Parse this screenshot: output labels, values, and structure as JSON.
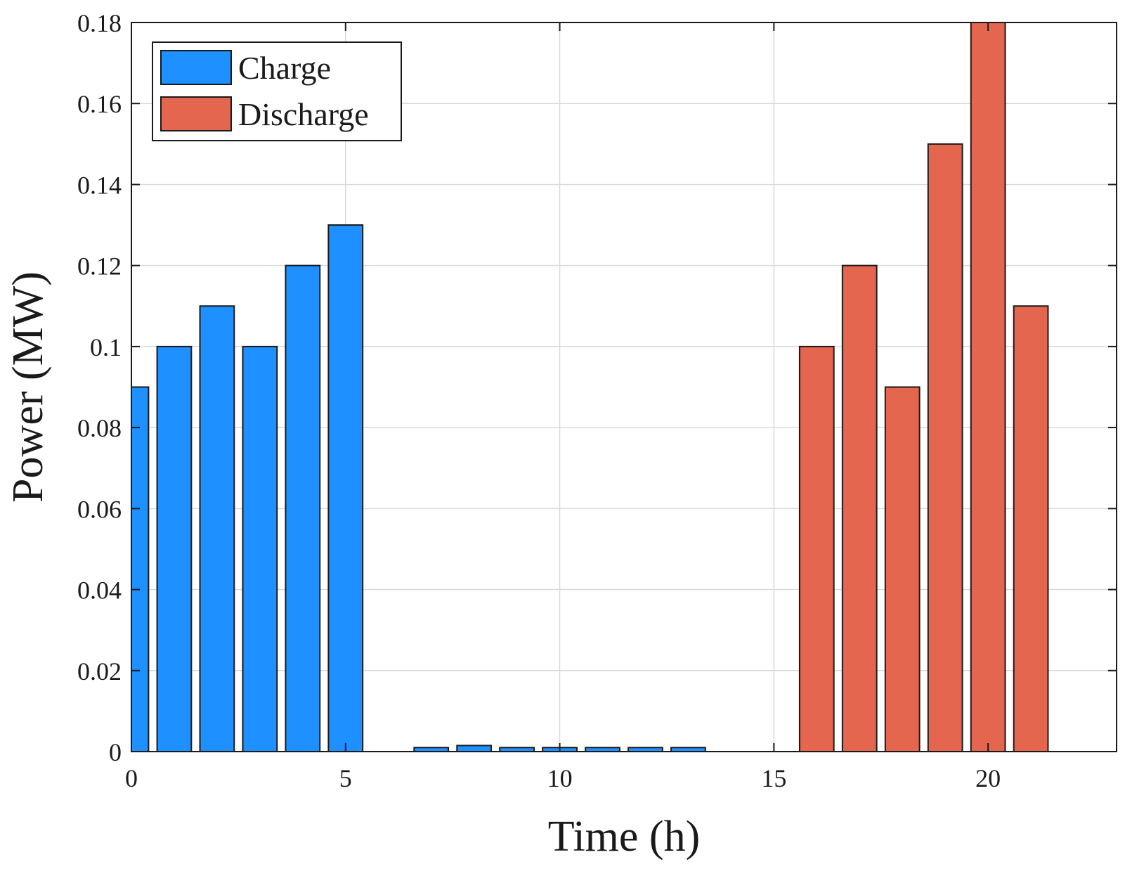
{
  "chart_data": {
    "type": "bar",
    "title": "",
    "xlabel": "Time (h)",
    "ylabel": "Power (MW)",
    "xlim": [
      0,
      23
    ],
    "ylim": [
      0,
      0.18
    ],
    "xticks": [
      0,
      5,
      10,
      15,
      20
    ],
    "xtick_labels": [
      "0",
      "5",
      "10",
      "15",
      "20"
    ],
    "yticks": [
      0,
      0.02,
      0.04,
      0.06,
      0.08,
      0.1,
      0.12,
      0.14,
      0.16,
      0.18
    ],
    "ytick_labels": [
      "0",
      "0.02",
      "0.04",
      "0.06",
      "0.08",
      "0.1",
      "0.12",
      "0.14",
      "0.16",
      "0.18"
    ],
    "grid": true,
    "legend_position": "top-left",
    "bar_width": 0.8,
    "series": [
      {
        "name": "Charge",
        "color": "#1e90ff",
        "x": [
          0,
          1,
          2,
          3,
          4,
          5,
          6,
          7,
          8,
          9,
          10,
          11,
          12,
          13
        ],
        "values": [
          0.09,
          0.1,
          0.11,
          0.1,
          0.12,
          0.13,
          0,
          0.001,
          0.0015,
          0.001,
          0.001,
          0.001,
          0.001,
          0.001
        ]
      },
      {
        "name": "Discharge",
        "color": "#e4664e",
        "x": [
          16,
          17,
          18,
          19,
          20,
          21
        ],
        "values": [
          0.1,
          0.12,
          0.09,
          0.15,
          0.18,
          0.11
        ]
      }
    ]
  }
}
